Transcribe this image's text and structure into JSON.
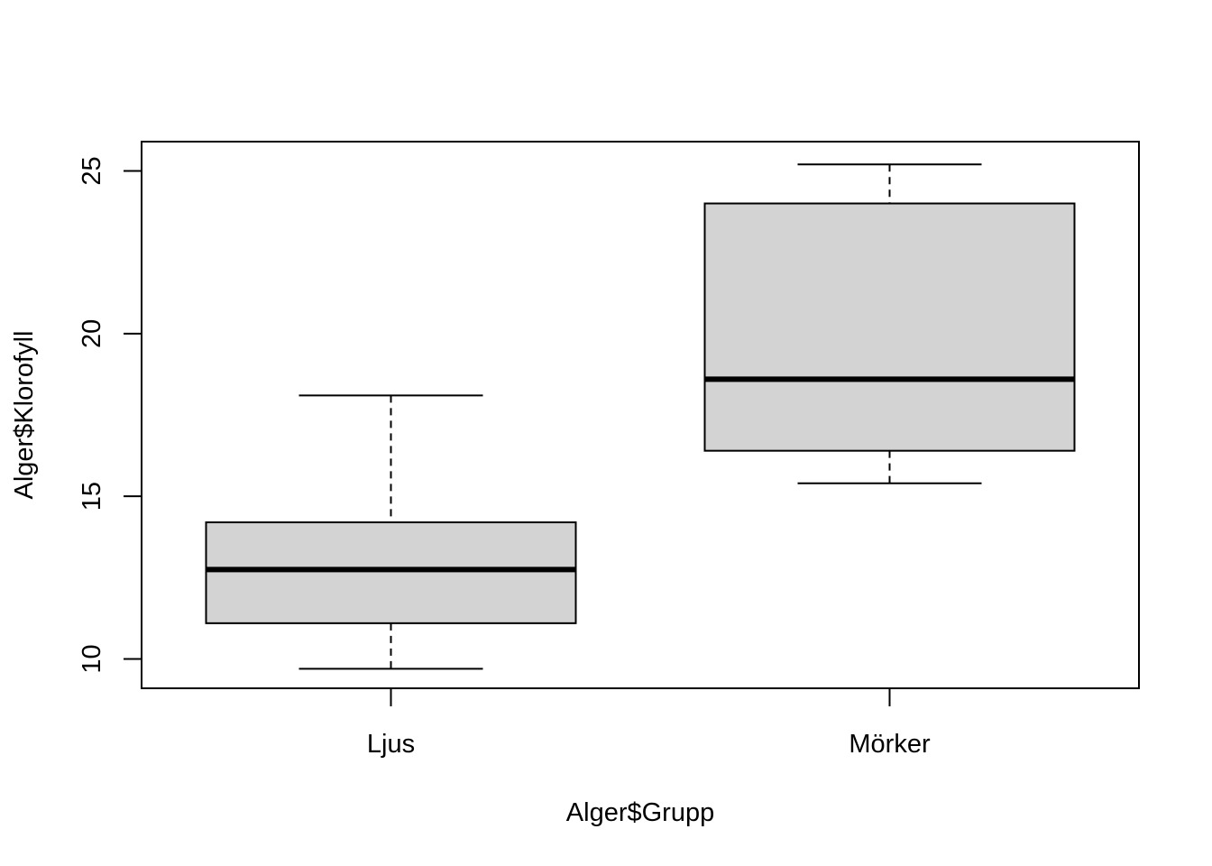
{
  "chart_data": {
    "type": "boxplot",
    "title": "",
    "xlabel": "Alger$Grupp",
    "ylabel": "Alger$Klorofyll",
    "categories": [
      "Ljus",
      "Mörker"
    ],
    "boxes": [
      {
        "category": "Ljus",
        "whisker_low": 9.7,
        "q1": 11.1,
        "median": 12.75,
        "q3": 14.2,
        "whisker_high": 18.1
      },
      {
        "category": "Mörker",
        "whisker_low": 15.4,
        "q1": 16.4,
        "median": 18.6,
        "q3": 24.0,
        "whisker_high": 25.2
      }
    ],
    "yticks": [
      "10",
      "15",
      "20",
      "25"
    ],
    "ylim": [
      9.1,
      25.9
    ],
    "grid": false,
    "legend": "none",
    "colors": {
      "box_fill": "#d3d3d3",
      "stroke": "#000000",
      "background": "#ffffff"
    }
  }
}
